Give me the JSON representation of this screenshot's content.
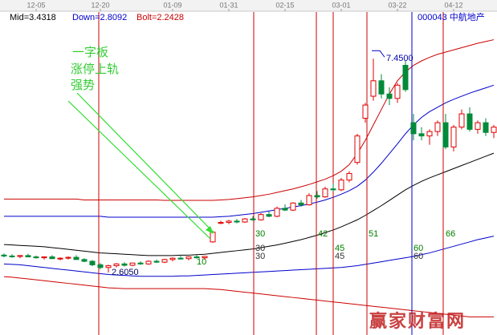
{
  "chart_data": {
    "type": "candlestick",
    "info": [
      "Mid=3.4318",
      "Down=2.8092",
      "Bolt=2.2428"
    ],
    "info_colors": [
      "#000000",
      "#0000cc",
      "#cc0000"
    ],
    "stock": "000043 中航地产",
    "annotation": [
      "一字板",
      "涨停上轨",
      "强势"
    ],
    "max_label": "7.4500",
    "min_label": "2.6050",
    "watermark": "赢家财富网",
    "markers": [
      [
        "10"
      ],
      [
        "30",
        "30",
        "30"
      ],
      [
        "42"
      ],
      [
        "45",
        "45"
      ],
      [
        "51"
      ],
      [
        "60",
        "60"
      ],
      [
        "66"
      ]
    ],
    "up_color": "#e00000",
    "down_color": "#008a3a",
    "ylim": [
      1.19,
      8.78
    ],
    "categories": [
      null,
      null,
      null,
      null,
      "12-05",
      null,
      null,
      null,
      null,
      null,
      null,
      null,
      "12-20",
      null,
      null,
      null,
      null,
      null,
      null,
      null,
      null,
      "01-09",
      null,
      null,
      null,
      null,
      null,
      null,
      "01-31",
      null,
      null,
      null,
      null,
      null,
      null,
      "02-15",
      null,
      null,
      null,
      null,
      null,
      null,
      "03-01",
      null,
      null,
      null,
      null,
      null,
      null,
      "03-22",
      null,
      null,
      null,
      null,
      null,
      null,
      "04-12",
      null,
      null,
      null,
      null,
      null
    ],
    "open": [
      3.0,
      2.98,
      2.97,
      2.99,
      2.96,
      2.94,
      2.96,
      2.92,
      2.93,
      2.95,
      2.9,
      2.86,
      2.78,
      2.72,
      2.76,
      2.8,
      2.77,
      2.82,
      2.8,
      2.86,
      2.84,
      2.9,
      2.93,
      2.92,
      2.96,
      2.94,
      3.3,
      3.72,
      3.74,
      3.77,
      3.75,
      3.82,
      3.8,
      3.92,
      3.88,
      4.06,
      4.02,
      4.18,
      4.14,
      4.35,
      4.32,
      4.5,
      4.48,
      4.7,
      5.1,
      6.1,
      6.6,
      6.95,
      6.65,
      6.55,
      7.3,
      6.0,
      5.75,
      5.7,
      5.8,
      6.0,
      5.45,
      5.9,
      6.2,
      5.85,
      6.0,
      5.78
    ],
    "high": [
      3.04,
      3.02,
      3.0,
      3.03,
      2.99,
      2.97,
      3.0,
      2.95,
      2.97,
      3.0,
      2.93,
      2.89,
      2.82,
      2.78,
      2.82,
      2.84,
      2.83,
      2.86,
      2.88,
      2.9,
      2.92,
      2.95,
      2.98,
      2.97,
      3.0,
      2.98,
      3.55,
      3.78,
      3.8,
      3.82,
      3.84,
      3.88,
      3.95,
      4.0,
      4.1,
      4.15,
      4.2,
      4.25,
      4.4,
      4.45,
      4.55,
      4.62,
      4.75,
      4.9,
      5.75,
      6.45,
      7.45,
      7.1,
      6.8,
      6.9,
      7.4,
      6.2,
      5.9,
      5.85,
      6.05,
      6.2,
      5.95,
      6.3,
      6.35,
      6.05,
      6.1,
      5.95
    ],
    "low": [
      2.95,
      2.94,
      2.93,
      2.96,
      2.92,
      2.9,
      2.93,
      2.88,
      2.9,
      2.92,
      2.84,
      2.75,
      2.68,
      2.605,
      2.72,
      2.74,
      2.75,
      2.78,
      2.78,
      2.82,
      2.82,
      2.86,
      2.9,
      2.88,
      2.92,
      2.9,
      3.28,
      3.7,
      3.7,
      3.72,
      3.73,
      3.78,
      3.78,
      3.86,
      3.86,
      4.0,
      4.0,
      4.1,
      4.12,
      4.28,
      4.3,
      4.44,
      4.45,
      4.65,
      5.05,
      6.0,
      6.5,
      6.55,
      6.4,
      6.45,
      6.7,
      5.6,
      5.6,
      5.5,
      5.7,
      5.4,
      5.35,
      5.85,
      5.8,
      5.75,
      5.7,
      5.65
    ],
    "close": [
      2.98,
      2.97,
      2.99,
      2.96,
      2.94,
      2.96,
      2.92,
      2.93,
      2.95,
      2.9,
      2.86,
      2.78,
      2.72,
      2.76,
      2.8,
      2.77,
      2.82,
      2.8,
      2.86,
      2.84,
      2.9,
      2.93,
      2.92,
      2.96,
      2.94,
      2.97,
      3.52,
      3.74,
      3.77,
      3.75,
      3.82,
      3.8,
      3.92,
      3.88,
      4.06,
      4.02,
      4.18,
      4.14,
      4.35,
      4.32,
      4.5,
      4.48,
      4.7,
      4.85,
      5.7,
      6.4,
      6.95,
      6.65,
      6.55,
      6.85,
      6.75,
      5.75,
      5.7,
      5.8,
      6.0,
      5.45,
      5.9,
      6.2,
      5.85,
      6.0,
      5.78,
      5.9
    ],
    "lines": [
      {
        "color": "#cc0000",
        "values": [
          4.27,
          4.27,
          4.27,
          4.27,
          4.27,
          4.27,
          4.27,
          4.27,
          4.27,
          4.27,
          4.25,
          4.25,
          4.25,
          4.25,
          4.25,
          4.25,
          4.25,
          4.25,
          4.25,
          4.25,
          4.24,
          4.24,
          4.24,
          4.24,
          4.24,
          4.24,
          4.24,
          4.25,
          4.26,
          4.28,
          4.3,
          4.32,
          4.35,
          4.38,
          4.42,
          4.46,
          4.5,
          4.55,
          4.6,
          4.66,
          4.72,
          4.8,
          4.9,
          5.05,
          5.3,
          5.6,
          5.95,
          6.3,
          6.65,
          6.95,
          7.15,
          7.3,
          7.4,
          7.48,
          7.55,
          7.6,
          7.65,
          7.7,
          7.75,
          7.8,
          7.84,
          7.88
        ]
      },
      {
        "color": "#0000cc",
        "values": [
          3.88,
          3.88,
          3.88,
          3.88,
          3.88,
          3.88,
          3.88,
          3.88,
          3.88,
          3.88,
          3.88,
          3.88,
          3.88,
          3.86,
          3.86,
          3.86,
          3.86,
          3.86,
          3.86,
          3.86,
          3.86,
          3.86,
          3.86,
          3.86,
          3.86,
          3.86,
          3.86,
          3.87,
          3.88,
          3.9,
          3.92,
          3.94,
          3.97,
          4.0,
          4.03,
          4.06,
          4.09,
          4.12,
          4.16,
          4.2,
          4.25,
          4.31,
          4.38,
          4.46,
          4.56,
          4.7,
          4.88,
          5.08,
          5.3,
          5.52,
          5.75,
          5.95,
          6.12,
          6.25,
          6.35,
          6.45,
          6.53,
          6.6,
          6.67,
          6.73,
          6.79,
          6.85
        ]
      },
      {
        "color": "#000000",
        "values": [
          3.24,
          3.23,
          3.22,
          3.21,
          3.2,
          3.19,
          3.17,
          3.15,
          3.13,
          3.11,
          3.09,
          3.07,
          3.05,
          3.04,
          3.03,
          3.02,
          3.01,
          3.0,
          2.99,
          2.99,
          2.99,
          2.99,
          3.0,
          3.0,
          3.01,
          3.02,
          3.04,
          3.06,
          3.08,
          3.1,
          3.12,
          3.14,
          3.17,
          3.2,
          3.23,
          3.27,
          3.31,
          3.35,
          3.4,
          3.45,
          3.51,
          3.57,
          3.64,
          3.72,
          3.8,
          3.9,
          4.01,
          4.12,
          4.24,
          4.36,
          4.48,
          4.58,
          4.67,
          4.75,
          4.82,
          4.89,
          4.96,
          5.03,
          5.1,
          5.17,
          5.24,
          5.31
        ]
      },
      {
        "color": "#0000cc",
        "values": [
          2.8,
          2.79,
          2.78,
          2.76,
          2.74,
          2.72,
          2.7,
          2.68,
          2.66,
          2.64,
          2.62,
          2.6,
          2.58,
          2.56,
          2.55,
          2.54,
          2.53,
          2.52,
          2.52,
          2.52,
          2.52,
          2.52,
          2.53,
          2.53,
          2.54,
          2.55,
          2.56,
          2.57,
          2.58,
          2.59,
          2.6,
          2.61,
          2.62,
          2.63,
          2.64,
          2.65,
          2.66,
          2.67,
          2.68,
          2.69,
          2.7,
          2.71,
          2.72,
          2.74,
          2.76,
          2.79,
          2.82,
          2.85,
          2.88,
          2.91,
          2.94,
          2.97,
          3.01,
          3.05,
          3.1,
          3.15,
          3.2,
          3.25,
          3.3,
          3.35,
          3.39,
          3.43
        ]
      },
      {
        "color": "#cc0000",
        "values": [
          2.51,
          2.5,
          2.48,
          2.46,
          2.44,
          2.42,
          2.4,
          2.38,
          2.36,
          2.34,
          2.32,
          2.3,
          2.28,
          2.26,
          2.25,
          2.24,
          2.24,
          2.24,
          2.24,
          2.24,
          2.24,
          2.24,
          2.24,
          2.24,
          2.24,
          2.24,
          2.23,
          2.22,
          2.2,
          2.18,
          2.16,
          2.14,
          2.12,
          2.1,
          2.08,
          2.06,
          2.04,
          2.02,
          2.0,
          1.98,
          1.96,
          1.94,
          1.92,
          1.9,
          1.88,
          1.86,
          1.84,
          1.82,
          1.8,
          1.78,
          1.76,
          1.74,
          1.72,
          1.7,
          1.68,
          1.66,
          1.64,
          1.62,
          1.6,
          1.6,
          1.6,
          1.6
        ]
      }
    ]
  }
}
